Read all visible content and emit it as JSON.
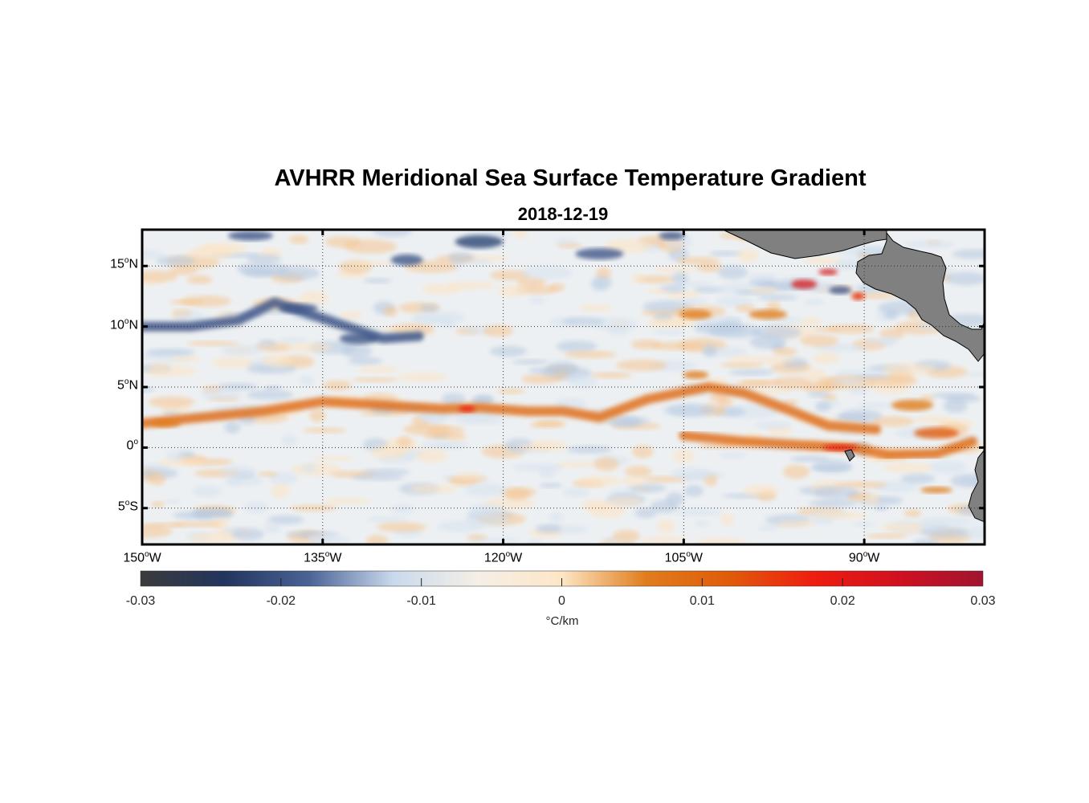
{
  "title": "AVHRR Meridional Sea Surface Temperature Gradient",
  "subtitle": "2018-12-19",
  "lat_labels": [
    {
      "deg": "15",
      "hemi": "N",
      "lat": 15
    },
    {
      "deg": "10",
      "hemi": "N",
      "lat": 10
    },
    {
      "deg": "5",
      "hemi": "N",
      "lat": 5
    },
    {
      "deg": "0",
      "hemi": "",
      "lat": 0
    },
    {
      "deg": "5",
      "hemi": "S",
      "lat": -5
    }
  ],
  "lon_labels": [
    {
      "deg": "150",
      "hemi": "W",
      "lon": -150
    },
    {
      "deg": "135",
      "hemi": "W",
      "lon": -135
    },
    {
      "deg": "120",
      "hemi": "W",
      "lon": -120
    },
    {
      "deg": "105",
      "hemi": "W",
      "lon": -105
    },
    {
      "deg": "90",
      "hemi": "W",
      "lon": -90
    }
  ],
  "colorbar": {
    "ticks": [
      "-0.03",
      "-0.02",
      "-0.01",
      "0",
      "0.01",
      "0.02",
      "0.03"
    ],
    "unit": "°C/km",
    "colors": [
      "#3b3b3b",
      "#22355e",
      "#4a6396",
      "#c9d9ec",
      "#f5efe6",
      "#fde6c6",
      "#e07d1c",
      "#e05a0a",
      "#ee1d10",
      "#d01020",
      "#a01530"
    ]
  },
  "map_data": {
    "extent": {
      "lon": [
        -150,
        -80
      ],
      "lat": [
        -8,
        18
      ]
    },
    "land_color": "#808080",
    "grid": "dotted",
    "features": [
      {
        "type": "warm",
        "desc": "equatorial front band",
        "points": [
          [
            -150,
            2
          ],
          [
            -145,
            2.5
          ],
          [
            -140,
            3
          ],
          [
            -135,
            3.8
          ],
          [
            -130,
            3.5
          ],
          [
            -125,
            3.2
          ],
          [
            -122,
            3.3
          ],
          [
            -118,
            3
          ],
          [
            -115,
            3
          ],
          [
            -112,
            2.5
          ],
          [
            -108,
            4
          ],
          [
            -103,
            5
          ],
          [
            -100,
            4.5
          ],
          [
            -96,
            3
          ],
          [
            -93,
            1.8
          ],
          [
            -89,
            1.5
          ]
        ]
      },
      {
        "type": "warm",
        "desc": "equatorial cold tongue edge",
        "points": [
          [
            -105,
            1
          ],
          [
            -100,
            0.5
          ],
          [
            -95,
            0.2
          ],
          [
            -91,
            0
          ],
          [
            -88,
            -0.6
          ],
          [
            -84,
            -0.5
          ],
          [
            -81,
            0.5
          ]
        ]
      },
      {
        "type": "cold",
        "desc": "ITCZ negative band",
        "points": [
          [
            -150,
            10
          ],
          [
            -146,
            10
          ],
          [
            -142,
            10.5
          ],
          [
            -139,
            12
          ],
          [
            -136,
            11
          ],
          [
            -133,
            10
          ],
          [
            -130,
            9
          ],
          [
            -127,
            9.2
          ]
        ]
      }
    ]
  }
}
